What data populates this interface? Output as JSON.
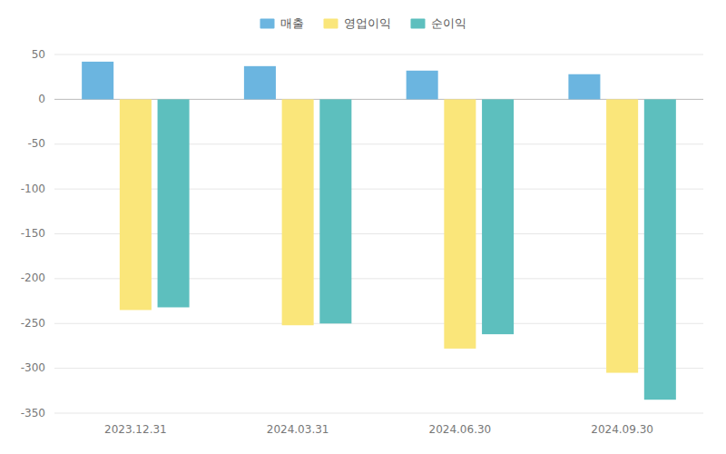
{
  "chart_data": {
    "type": "bar",
    "categories": [
      "2023.12.31",
      "2024.03.31",
      "2024.06.30",
      "2024.09.30"
    ],
    "series": [
      {
        "name": "매출",
        "color": "#6BB5E0",
        "values": [
          42,
          37,
          32,
          28
        ]
      },
      {
        "name": "영업이익",
        "color": "#FAE67A",
        "values": [
          -235,
          -252,
          -278,
          -305
        ]
      },
      {
        "name": "순이익",
        "color": "#5DBFBE",
        "values": [
          -232,
          -250,
          -262,
          -335
        ]
      }
    ],
    "ylim": [
      -350,
      50
    ],
    "yticks": [
      -350,
      -300,
      -250,
      -200,
      -150,
      -100,
      -50,
      0,
      50
    ],
    "grid": true,
    "legend": "top"
  }
}
